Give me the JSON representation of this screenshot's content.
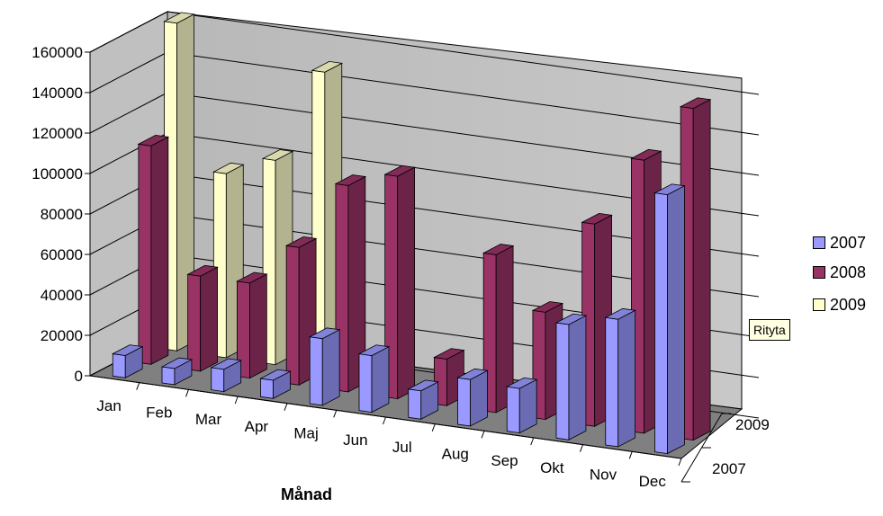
{
  "chart_data": {
    "type": "bar",
    "projection": "3d-column",
    "categories": [
      "Jan",
      "Feb",
      "Mar",
      "Apr",
      "Maj",
      "Jun",
      "Jul",
      "Aug",
      "Sep",
      "Okt",
      "Nov",
      "Dec"
    ],
    "series": [
      {
        "name": "2007",
        "color": "#9999ff",
        "values": [
          11000,
          8000,
          11000,
          9000,
          33000,
          28000,
          14000,
          23000,
          22000,
          57000,
          63000,
          128000
        ]
      },
      {
        "name": "2008",
        "color": "#993366",
        "values": [
          108000,
          47000,
          47000,
          68000,
          102000,
          110000,
          23000,
          78000,
          53000,
          100000,
          135000,
          164000
        ]
      },
      {
        "name": "2009",
        "color": "#ffffcc",
        "values": [
          162000,
          91000,
          101000,
          148000,
          null,
          null,
          null,
          null,
          null,
          null,
          null,
          null
        ]
      }
    ],
    "ylim": [
      0,
      160000
    ],
    "yticks": [
      "0",
      "20000",
      "40000",
      "60000",
      "80000",
      "100000",
      "120000",
      "140000",
      "160000"
    ],
    "xlabel": "Månad",
    "depth_labels": [
      "2007",
      "2009"
    ],
    "legend_position": "right",
    "grid": true
  },
  "tooltip": "Rityta"
}
